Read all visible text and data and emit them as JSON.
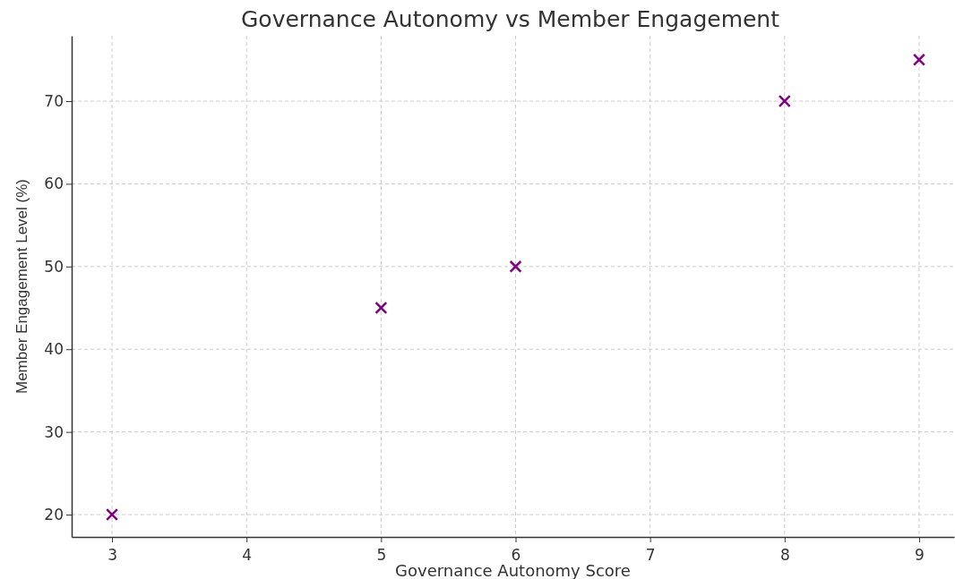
{
  "chart_data": {
    "type": "scatter",
    "title": "Governance Autonomy vs Member Engagement",
    "xlabel": "Governance Autonomy Score",
    "ylabel": "Member Engagement Level (%)",
    "x": [
      3,
      5,
      6,
      8,
      9
    ],
    "series": [
      {
        "color": "#800080",
        "values": [
          20,
          45,
          50,
          70,
          75
        ]
      }
    ],
    "xlim": [
      2.7,
      9.26
    ],
    "ylim": [
      17.3,
      77.9
    ],
    "xticks": [
      3,
      4,
      5,
      6,
      7,
      8,
      9
    ],
    "yticks": [
      20,
      30,
      40,
      50,
      60,
      70
    ],
    "grid": true,
    "marker": "cross"
  }
}
